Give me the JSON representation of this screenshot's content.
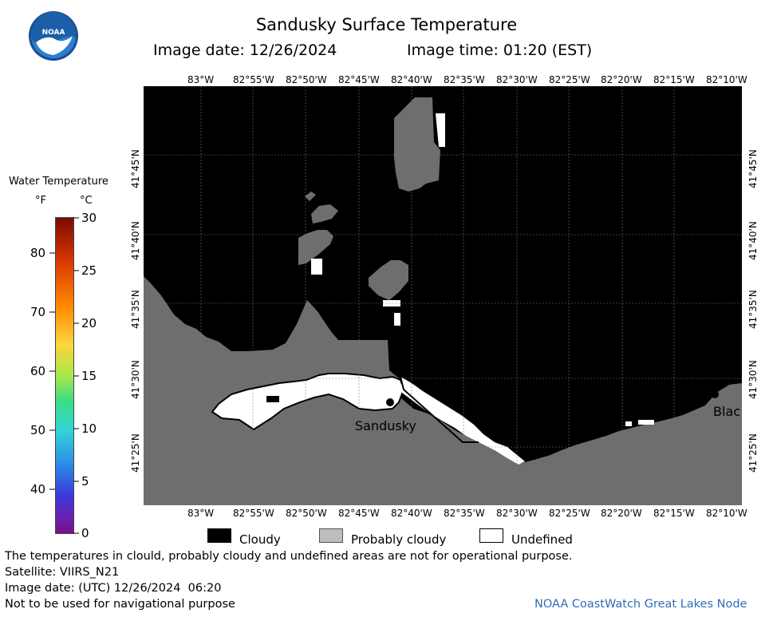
{
  "header": {
    "title": "Sandusky Surface Temperature",
    "image_date": "Image date: 12/26/2024",
    "image_time": "Image time: 01:20 (EST)"
  },
  "logo": {
    "text": "NOAA",
    "colors": {
      "ring": "#1a4f8f",
      "top": "#1a5fa8",
      "bird": "#ffffff",
      "bottom": "#2a7fd0"
    }
  },
  "colorbar": {
    "title": "Water Temperature",
    "unit_f": "°F",
    "unit_c": "°C",
    "f_labels": [
      "80",
      "70",
      "60",
      "50",
      "40"
    ],
    "c_labels": [
      "30",
      "25",
      "20",
      "15",
      "10",
      "5",
      "0"
    ],
    "gradient": [
      "#7d0b00",
      "#d93800",
      "#ff8a00",
      "#ffd33d",
      "#a8e84a",
      "#3ddc84",
      "#33d6d6",
      "#2a8ee8",
      "#3a3ad8",
      "#6a1fb0",
      "#7a0f8a"
    ]
  },
  "map": {
    "lon_labels": [
      "83°W",
      "82°55'W",
      "82°50'W",
      "82°45'W",
      "82°40'W",
      "82°35'W",
      "82°30'W",
      "82°25'W",
      "82°20'W",
      "82°15'W",
      "82°10'W"
    ],
    "lat_labels": [
      "41°45'N",
      "41°40'N",
      "41°35'N",
      "41°30'N",
      "41°25'N"
    ],
    "colors": {
      "cloudy": "#000000",
      "probably_cloudy": "#6e6e6e",
      "undefined": "#ffffff",
      "grid": "#7a7a7a"
    },
    "places": [
      {
        "name": "Sandusky"
      },
      {
        "name": "Blac"
      }
    ]
  },
  "legend": {
    "cloudy": "Cloudy",
    "probably_cloudy": "Probably cloudy",
    "undefined": "Undefined"
  },
  "footer": {
    "line1": "The temperatures in clould, probably cloudy and undefined areas are not for operational purpose.",
    "line2": "Satellite: VIIRS_N21",
    "line3": "Image date: (UTC) 12/26/2024  06:20",
    "line4": "Not to be used for navigational purpose",
    "credit": "NOAA CoastWatch Great Lakes Node"
  }
}
